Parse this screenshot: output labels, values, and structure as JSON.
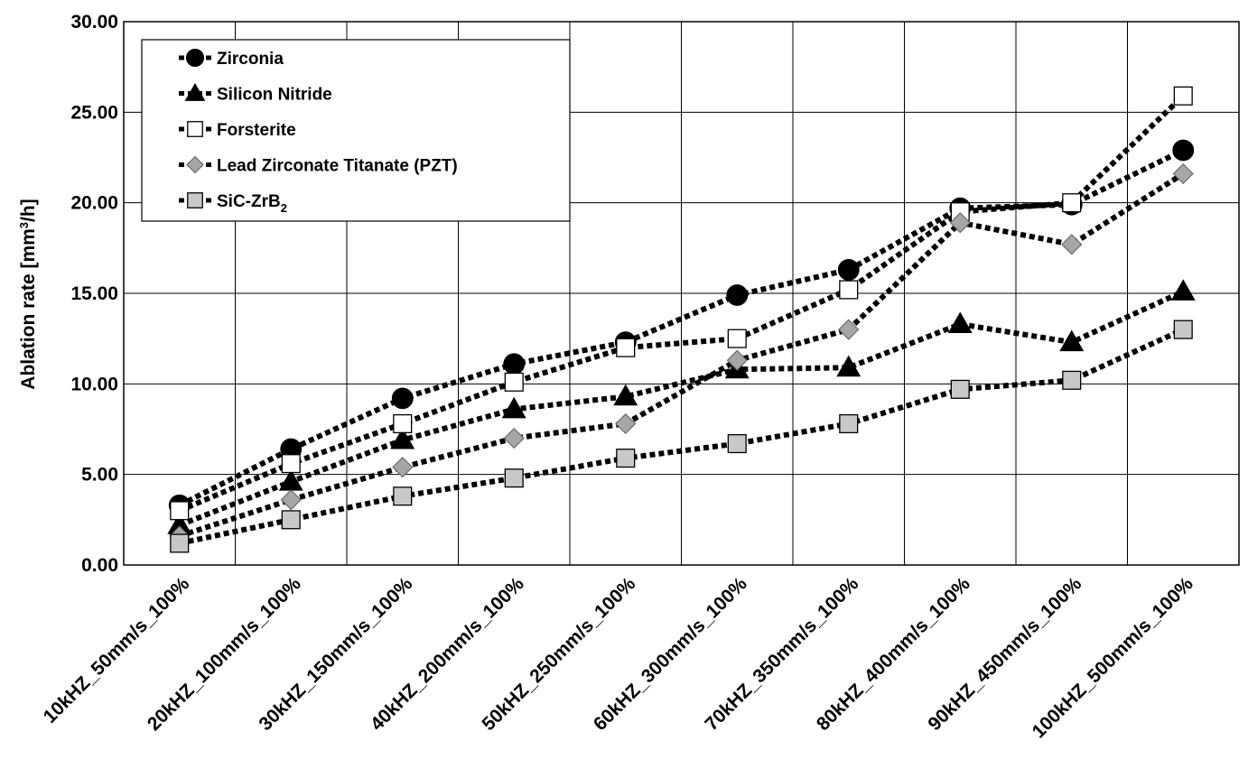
{
  "chart_data": {
    "type": "line",
    "title": "",
    "xlabel": "",
    "ylabel": "Ablation rate [mm³/h]",
    "ylim": [
      0,
      30
    ],
    "yticks": [
      "0.00",
      "5.00",
      "10.00",
      "15.00",
      "20.00",
      "25.00",
      "30.00"
    ],
    "grid": true,
    "legend_position": "top-left",
    "categories": [
      "10kHZ_50mm/s_100%",
      "20kHZ_100mm/s_100%",
      "30kHZ_150mm/s_100%",
      "40kHZ_200mm/s_100%",
      "50kHZ_250mm/s_100%",
      "60kHZ_300mm/s_100%",
      "70kHZ_350mm/s_100%",
      "80kHZ_400mm/s_100%",
      "90kHZ_450mm/s_100%",
      "100kHZ_500mm/s_100%"
    ],
    "series": [
      {
        "name": "Zirconia",
        "marker": "circle",
        "fill": "#000000",
        "values": [
          3.3,
          6.4,
          9.2,
          11.1,
          12.3,
          14.9,
          16.3,
          19.7,
          19.9,
          22.9
        ]
      },
      {
        "name": "Silicon Nitride",
        "marker": "triangle",
        "fill": "#000000",
        "values": [
          2.2,
          4.6,
          6.9,
          8.6,
          9.3,
          10.8,
          10.9,
          13.3,
          12.3,
          15.1
        ]
      },
      {
        "name": "Forsterite",
        "marker": "square",
        "fill": "#ffffff",
        "values": [
          3.0,
          5.6,
          7.8,
          10.1,
          12.0,
          12.5,
          15.2,
          19.5,
          20.0,
          25.9
        ]
      },
      {
        "name": "Lead Zirconate Titanate (PZT)",
        "marker": "diamond",
        "fill": "#a6a6a6",
        "values": [
          1.6,
          3.6,
          5.4,
          7.0,
          7.8,
          11.3,
          13.0,
          18.9,
          17.7,
          21.6
        ]
      },
      {
        "name": "SiC-ZrB",
        "name_sub": "2",
        "marker": "square",
        "fill": "#c8c8c8",
        "values": [
          1.2,
          2.5,
          3.8,
          4.8,
          5.9,
          6.7,
          7.8,
          9.7,
          10.2,
          13.0
        ]
      }
    ]
  }
}
